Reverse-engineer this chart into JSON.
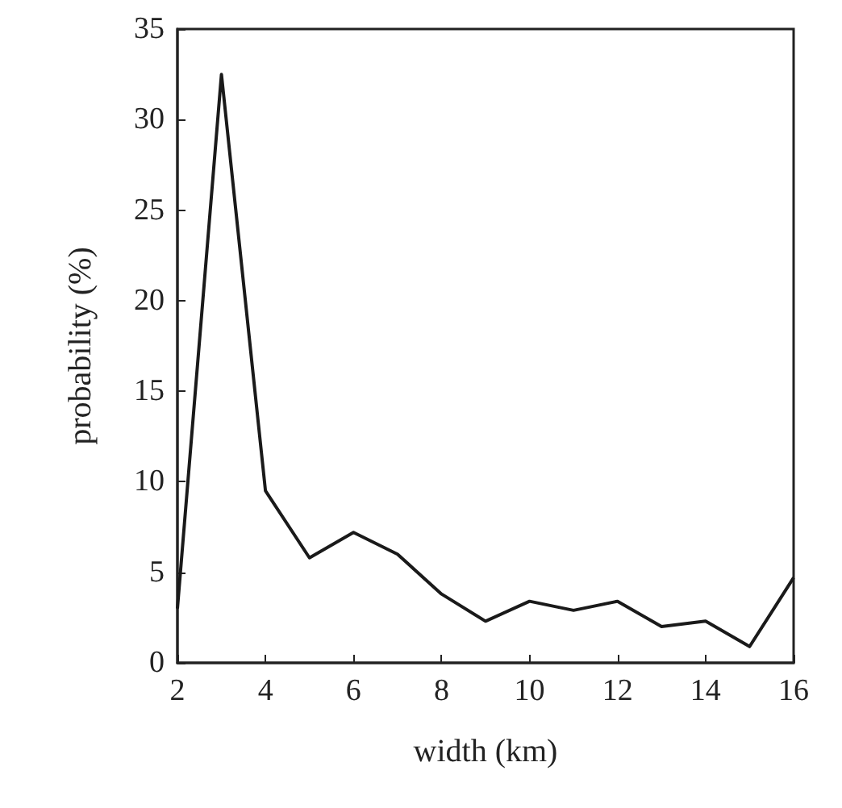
{
  "chart_data": {
    "type": "line",
    "xlabel": "width (km)",
    "ylabel": "probability (%)",
    "x": [
      2,
      3,
      4,
      5,
      6,
      7,
      8,
      9,
      10,
      11,
      12,
      13,
      14,
      15,
      16
    ],
    "series": [
      {
        "color": "#1a1a1a",
        "values": [
          3,
          32.5,
          9.5,
          5.8,
          7.2,
          6,
          3.8,
          2.3,
          3.4,
          2.9,
          3.4,
          2,
          2.3,
          0.9,
          4.7
        ]
      }
    ],
    "xlim": [
      2,
      16
    ],
    "xticks": [
      2,
      4,
      6,
      8,
      10,
      12,
      14,
      16
    ],
    "ylim": [
      0,
      35
    ],
    "yticks": [
      0,
      5,
      10,
      15,
      20,
      25,
      30,
      35
    ],
    "grid": false,
    "marker": "none",
    "line_style": "solid"
  }
}
